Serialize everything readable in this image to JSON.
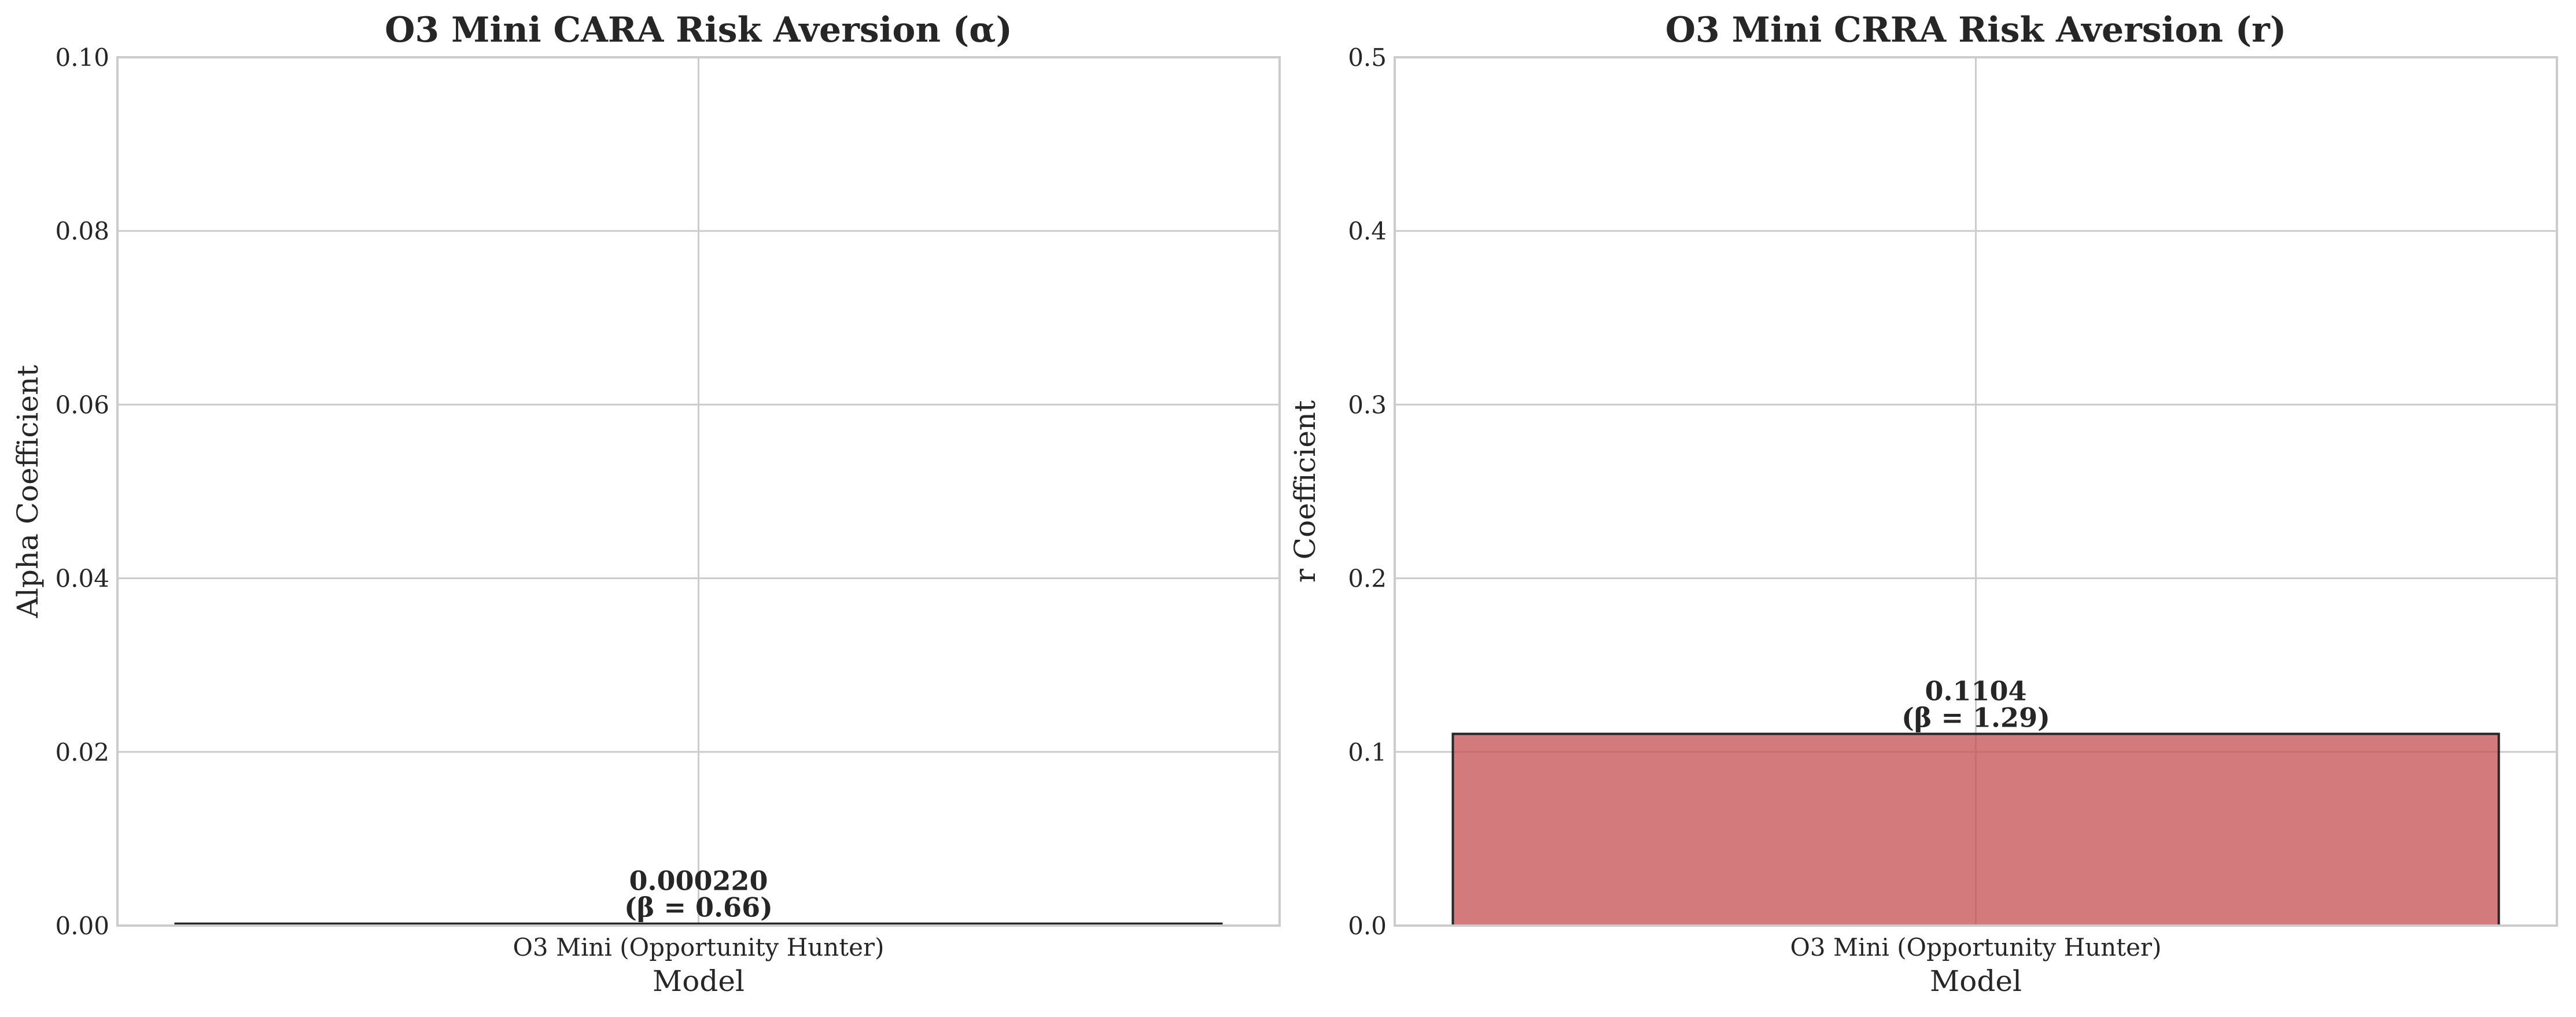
{
  "chart_data": [
    {
      "type": "bar",
      "title": "O3 Mini CARA Risk Aversion (α)",
      "xlabel": "Model",
      "ylabel": "Alpha Coefficient",
      "categories": [
        "O3 Mini (Opportunity Hunter)"
      ],
      "values": [
        0.00022
      ],
      "value_labels": [
        "0.000220"
      ],
      "beta_labels": [
        "(β = 0.66)"
      ],
      "ylim": [
        0,
        0.1
      ],
      "yticks": [
        "0.00",
        "0.02",
        "0.04",
        "0.06",
        "0.08",
        "0.10"
      ],
      "ytick_values": [
        0,
        0.02,
        0.04,
        0.06,
        0.08,
        0.1
      ],
      "bar_color": "#c44e52",
      "grid": true
    },
    {
      "type": "bar",
      "title": "O3 Mini CRRA Risk Aversion (r)",
      "xlabel": "Model",
      "ylabel": "r Coefficient",
      "categories": [
        "O3 Mini (Opportunity Hunter)"
      ],
      "values": [
        0.1104
      ],
      "value_labels": [
        "0.1104"
      ],
      "beta_labels": [
        "(β = 1.29)"
      ],
      "ylim": [
        0,
        0.5
      ],
      "yticks": [
        "0.0",
        "0.1",
        "0.2",
        "0.3",
        "0.4",
        "0.5"
      ],
      "ytick_values": [
        0,
        0.1,
        0.2,
        0.3,
        0.4,
        0.5
      ],
      "bar_color": "#c44e52",
      "grid": true
    }
  ]
}
